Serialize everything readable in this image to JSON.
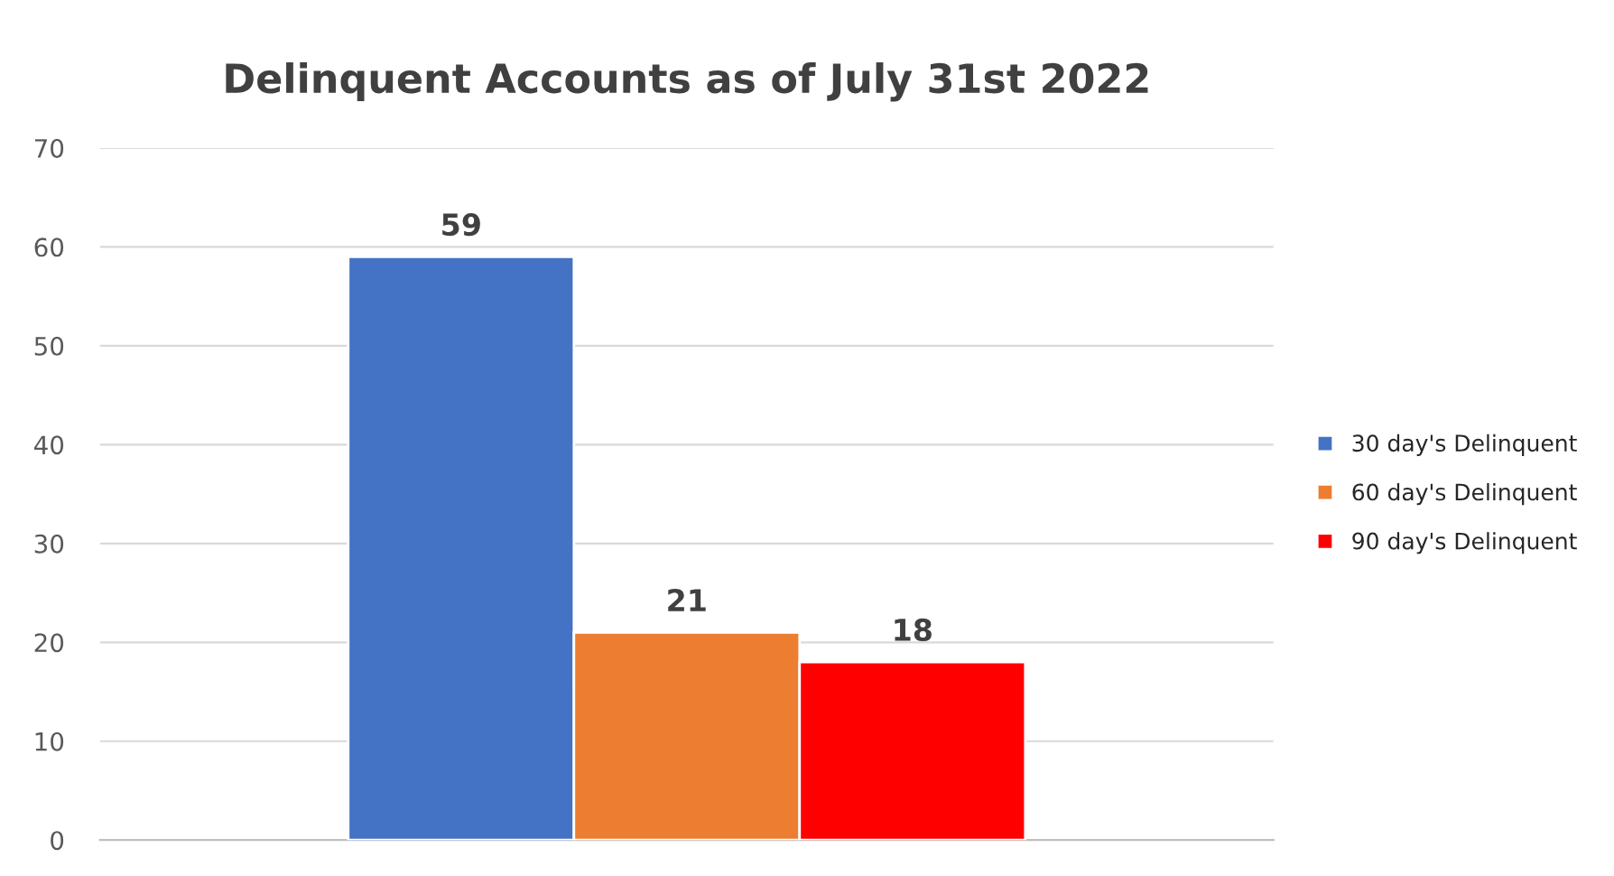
{
  "chart_data": {
    "type": "bar",
    "title": "Delinquent Accounts as of July 31st 2022",
    "categories": [
      null
    ],
    "series": [
      {
        "name": "30 day's Delinquent",
        "color": "#4472c4",
        "values": [
          59
        ]
      },
      {
        "name": "60 day's Delinquent",
        "color": "#ed7d31",
        "values": [
          21
        ]
      },
      {
        "name": "90 day's Delinquent",
        "color": "#ff0000",
        "values": [
          18
        ]
      }
    ],
    "ylim": [
      0,
      70
    ],
    "yticks": [
      0,
      10,
      20,
      30,
      40,
      50,
      60,
      70
    ],
    "grid": "y",
    "legend": "right",
    "data_labels": true
  }
}
